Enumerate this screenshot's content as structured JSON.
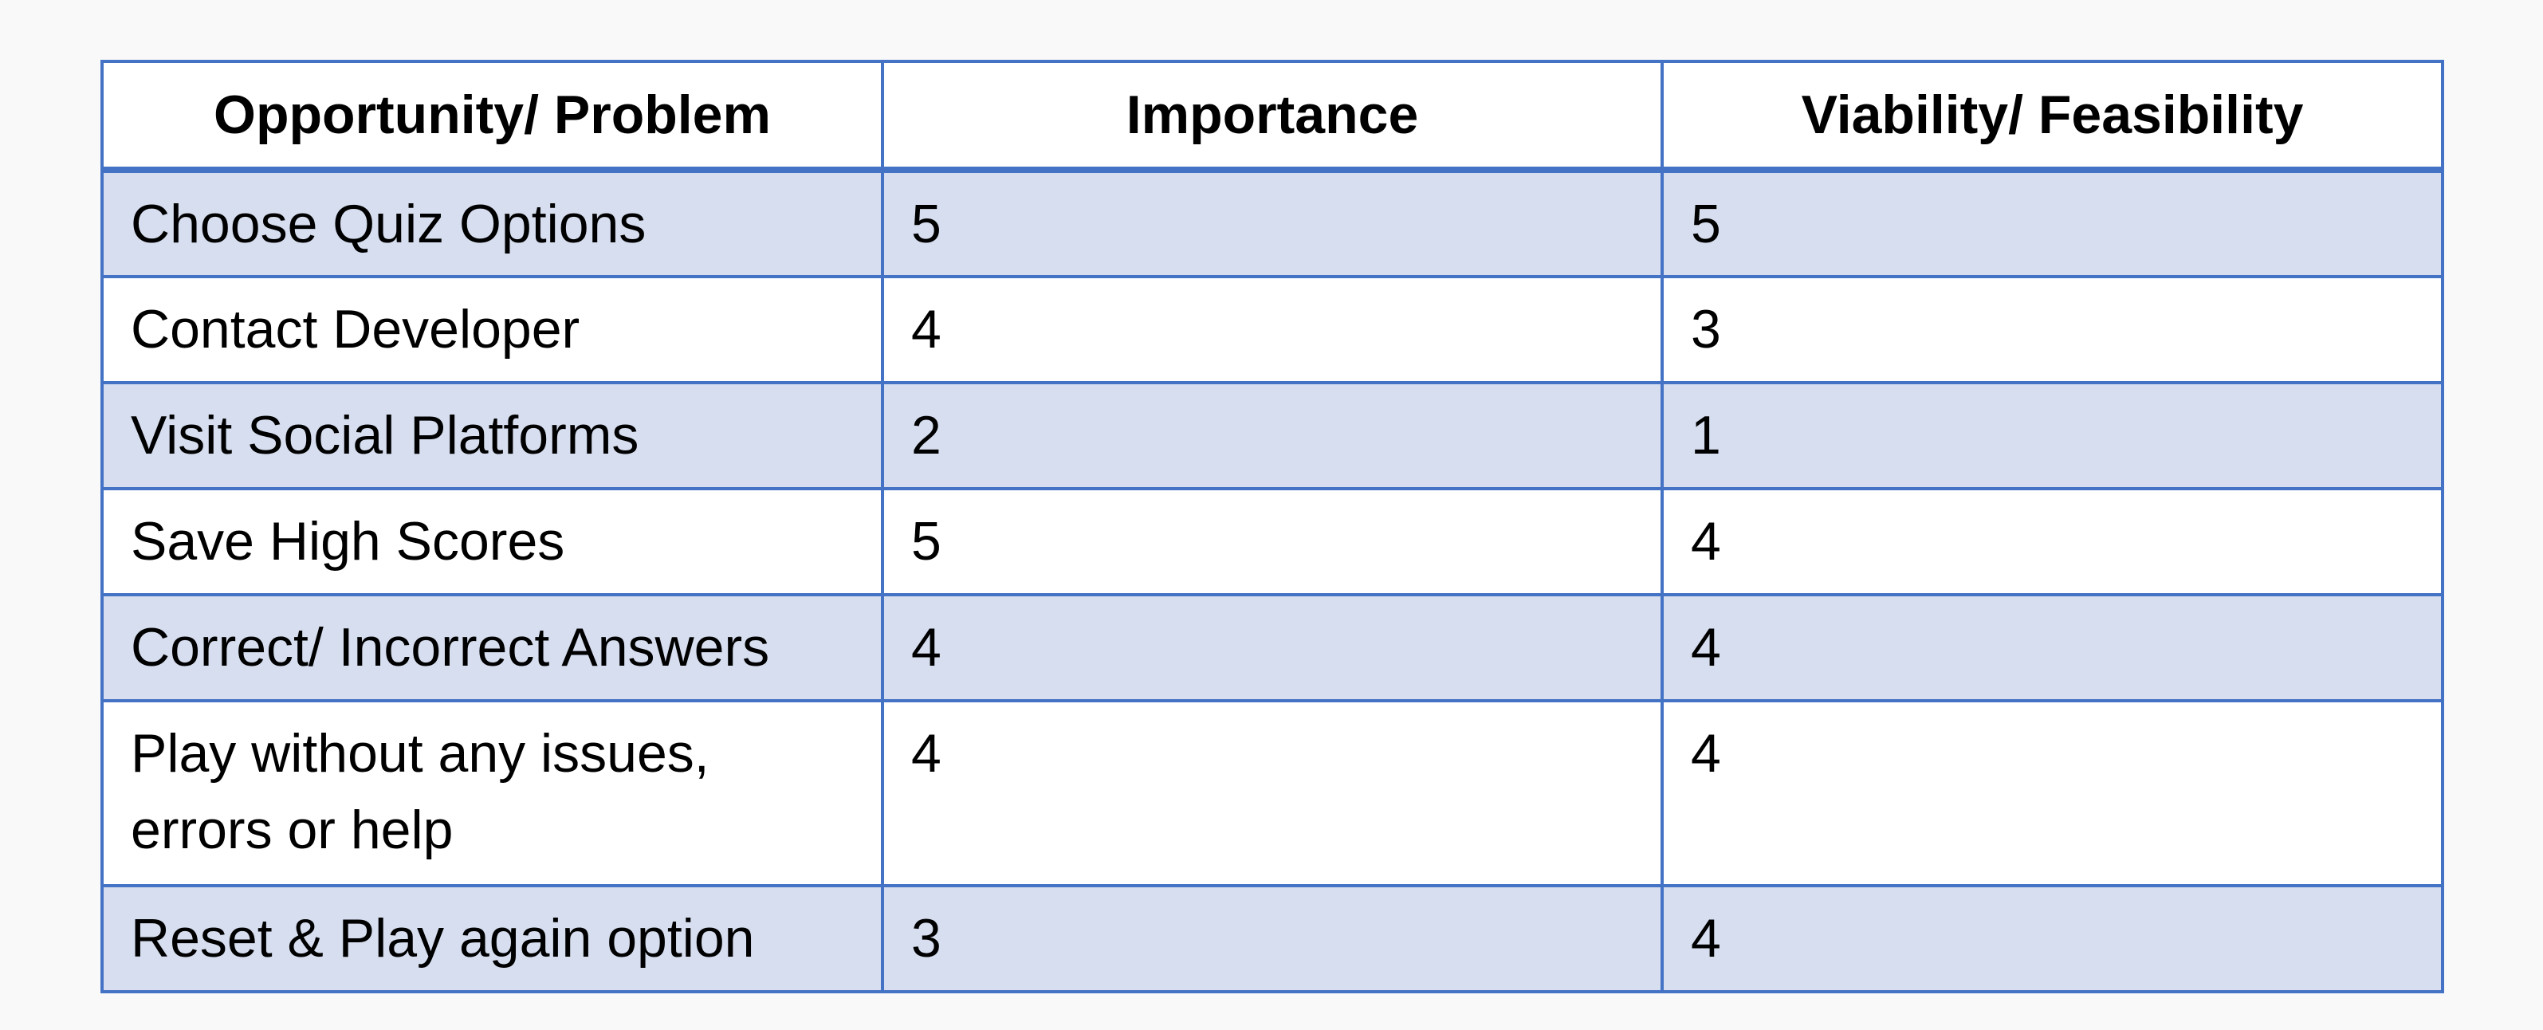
{
  "table": {
    "headers": [
      "Opportunity/ Problem",
      "Importance",
      "Viability/ Feasibility"
    ],
    "rows": [
      {
        "problem": "Choose Quiz Options",
        "importance": "5",
        "viability": "5"
      },
      {
        "problem": "Contact Developer",
        "importance": "4",
        "viability": "3"
      },
      {
        "problem": "Visit Social Platforms",
        "importance": "2",
        "viability": "1"
      },
      {
        "problem": "Save High Scores",
        "importance": "5",
        "viability": "4"
      },
      {
        "problem": "Correct/ Incorrect Answers",
        "importance": "4",
        "viability": "4"
      },
      {
        "problem": "Play without any issues, errors or help",
        "importance": "4",
        "viability": "4"
      },
      {
        "problem": "Reset & Play again option",
        "importance": "3",
        "viability": "4"
      }
    ]
  },
  "colors": {
    "border": "#4472c4",
    "row_shaded": "#d6deef",
    "row_plain": "#ffffff"
  }
}
